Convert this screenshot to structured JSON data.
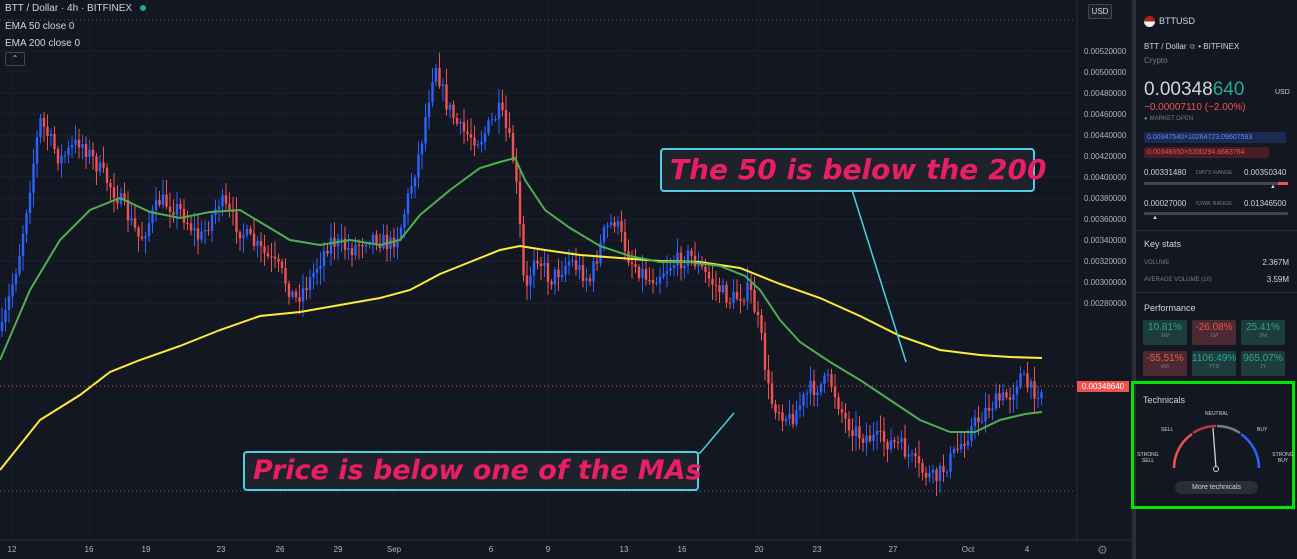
{
  "chart": {
    "title": "BTT / Dollar · 4h · BITFINEX",
    "indicators": [
      "EMA 50 close 0",
      "EMA 200 close 0"
    ],
    "currency_button": "USD",
    "current_price_label": "0.00348640",
    "price_axis": [
      "0.00520000",
      "0.00500000",
      "0.00480000",
      "0.00460000",
      "0.00440000",
      "0.00420000",
      "0.00400000",
      "0.00380000",
      "0.00360000",
      "0.00340000",
      "0.00320000",
      "0.00300000",
      "0.00280000"
    ],
    "time_axis": [
      "12",
      "16",
      "19",
      "23",
      "26",
      "29",
      "Sep",
      "6",
      "9",
      "13",
      "16",
      "20",
      "23",
      "27",
      "Oct",
      "4"
    ],
    "colors": {
      "ema50": "#4caf50",
      "ema200": "#ffeb3b",
      "bull": "#2962ff",
      "bear": "#ef5350",
      "callout_text": "#e91e63",
      "callout_border": "#4dd0e1",
      "highlight": "#00e600"
    }
  },
  "annotations": {
    "top": "The 50 is below the 200",
    "bottom": "Price is below one of the MAs"
  },
  "sidebar": {
    "symbol": "BTTUSD",
    "description": "BTT / Dollar",
    "exchange": "BITFINEX",
    "category": "Crypto",
    "price_main": "0.00348",
    "price_tail": "640",
    "currency": "USD",
    "change": "−0.00007110 (−2.00%)",
    "market_status": "MARKET OPEN",
    "bid": "0.00347540×10264723.09607593",
    "ask": "0.00348350×5200294.6683764",
    "days_range": {
      "low": "0.00331480",
      "label": "DAY'S RANGE",
      "high": "0.00350340"
    },
    "wk52_range": {
      "low": "0.00027000",
      "label": "52WK RANGE",
      "high": "0.01346500"
    },
    "key_stats": {
      "title": "Key stats",
      "volume_label": "VOLUME",
      "volume": "2.367M",
      "avg_volume_label": "AVERAGE VOLUME (10)",
      "avg_volume": "3.59M"
    },
    "performance": {
      "title": "Performance",
      "items": [
        {
          "value": "10.81%",
          "period": "1W",
          "dir": "pos"
        },
        {
          "value": "-26.08%",
          "period": "1M",
          "dir": "neg"
        },
        {
          "value": "25.41%",
          "period": "3M",
          "dir": "pos"
        },
        {
          "value": "-55.51%",
          "period": "6M",
          "dir": "neg"
        },
        {
          "value": "1106.49%",
          "period": "YTD",
          "dir": "pos"
        },
        {
          "value": "965.07%",
          "period": "1Y",
          "dir": "pos"
        }
      ]
    },
    "technicals": {
      "title": "Technicals",
      "labels": {
        "strong_sell": "STRONG SELL",
        "sell": "SELL",
        "neutral": "NEUTRAL",
        "buy": "BUY",
        "strong_buy": "STRONG BUY"
      },
      "more_button": "More technicals"
    }
  }
}
